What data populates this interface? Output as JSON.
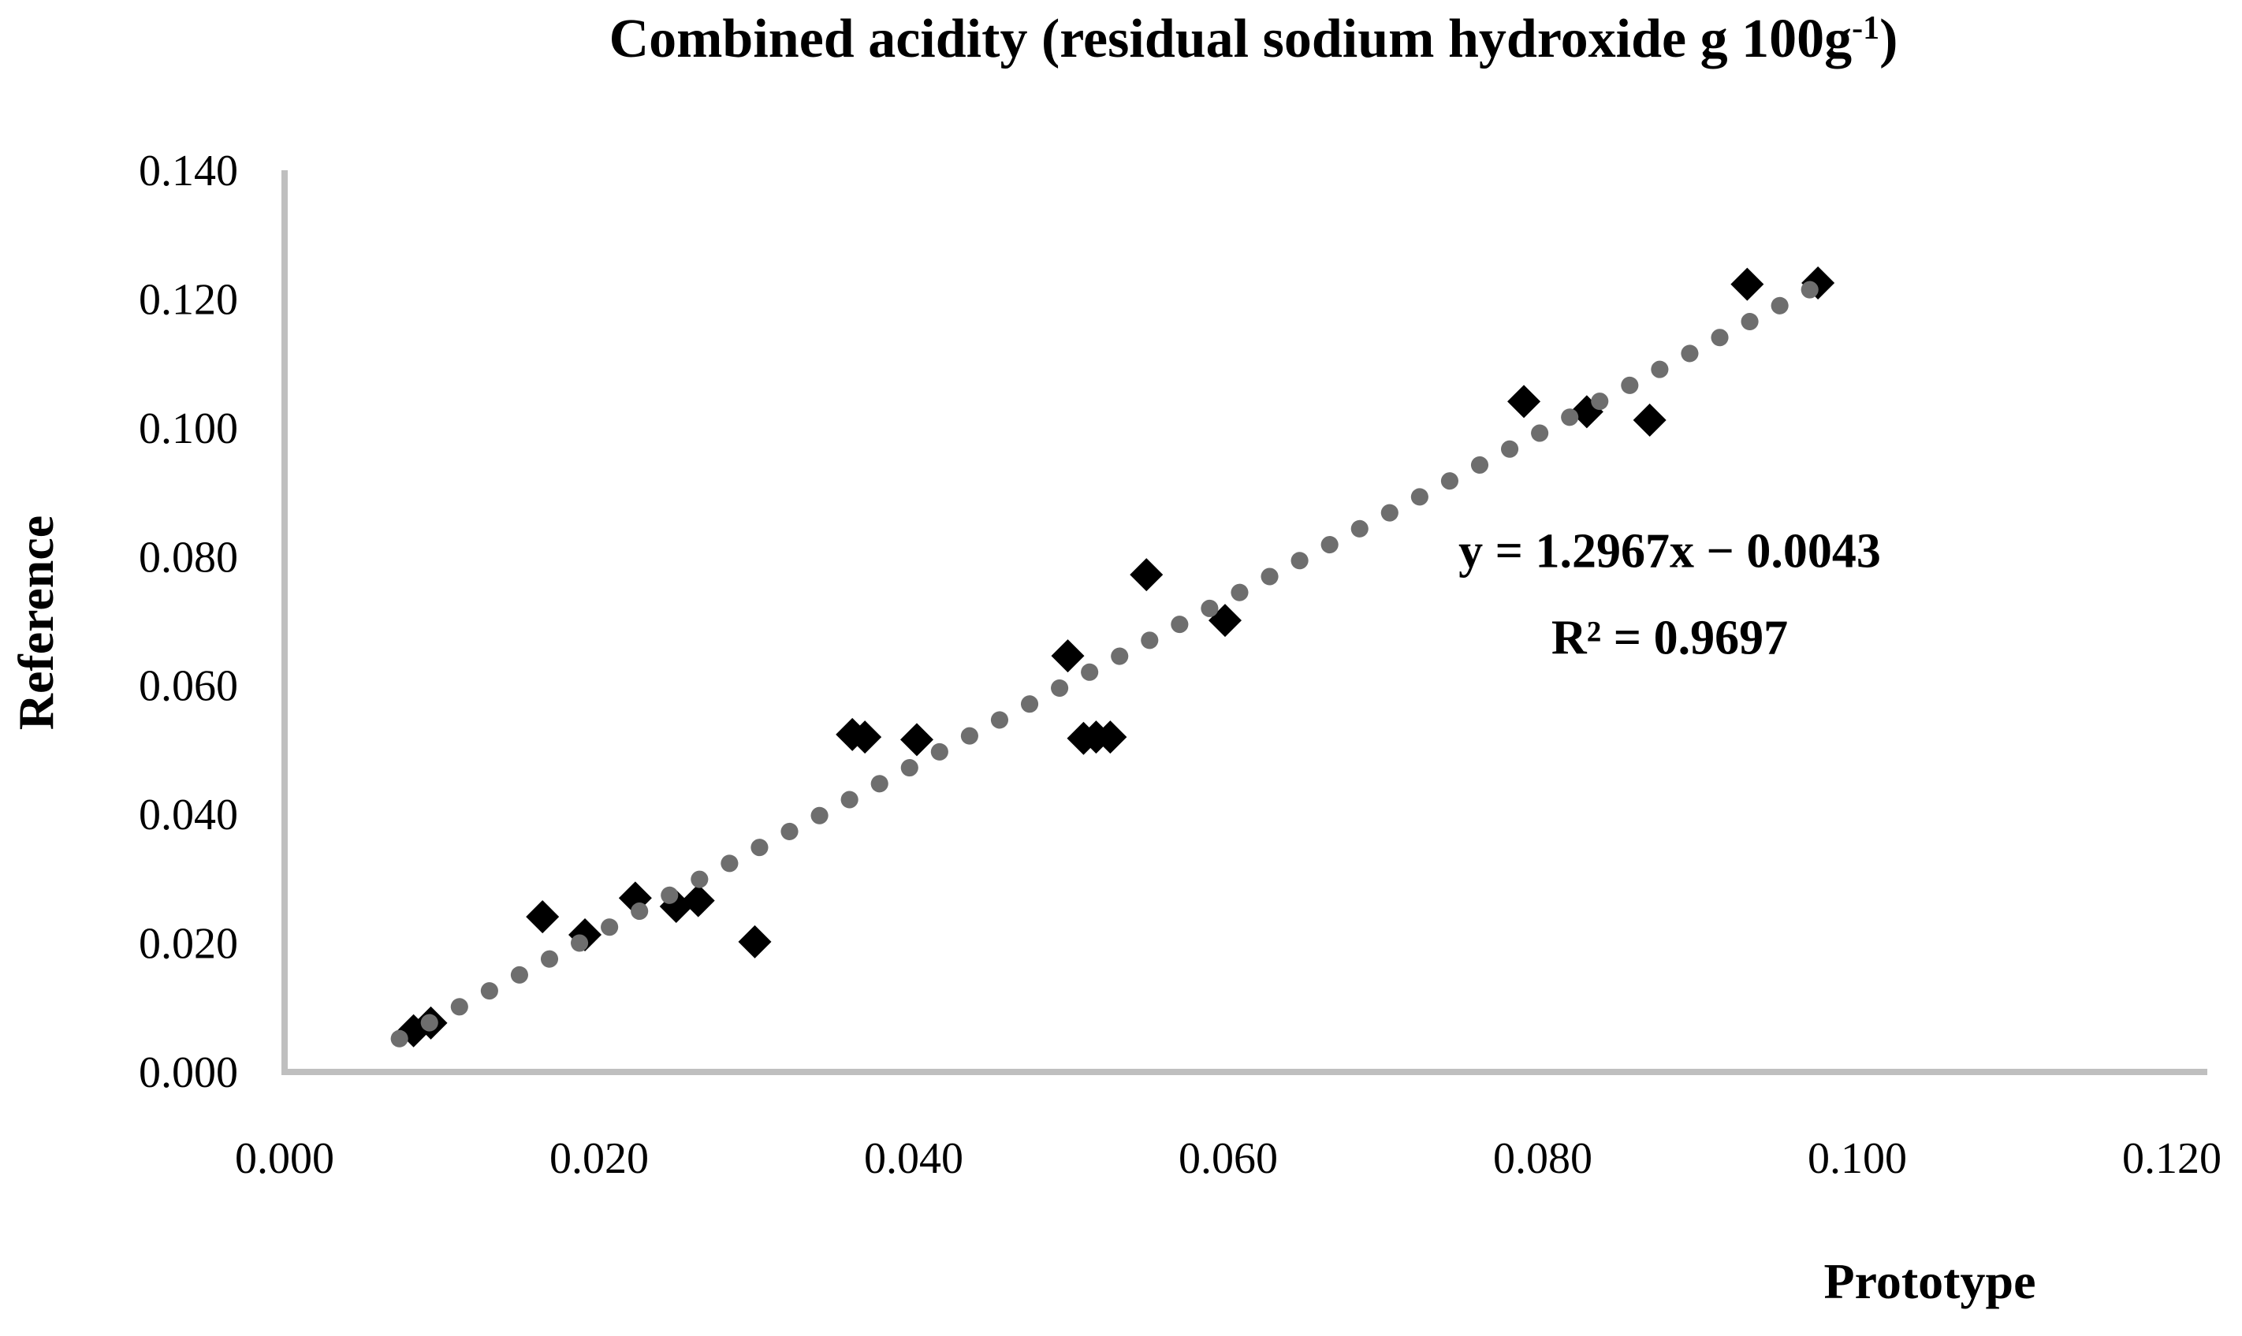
{
  "chart_data": {
    "type": "scatter",
    "title": "Combined acidity (residual sodium hydroxide g 100g⁻¹)",
    "title_parts": {
      "prefix": "Combined acidity (residual sodium hydroxide g 100g",
      "superscript": "-1",
      "suffix": ")"
    },
    "xlabel": "Prototype",
    "ylabel": "Reference",
    "x_axis": {
      "min": 0.0,
      "max": 0.12,
      "tick_values": [
        0.0,
        0.02,
        0.04,
        0.06,
        0.08,
        0.1,
        0.12
      ],
      "tick_labels": [
        "0.000",
        "0.020",
        "0.040",
        "0.060",
        "0.080",
        "0.100",
        "0.120"
      ]
    },
    "y_axis": {
      "min": 0.0,
      "max": 0.14,
      "tick_values": [
        0.0,
        0.02,
        0.04,
        0.06,
        0.08,
        0.1,
        0.12,
        0.14
      ],
      "tick_labels": [
        "0.000",
        "0.020",
        "0.040",
        "0.060",
        "0.080",
        "0.100",
        "0.120",
        "0.140"
      ]
    },
    "grid": "off",
    "legend": "none",
    "points": [
      [
        0.0082,
        0.0064
      ],
      [
        0.0093,
        0.0076
      ],
      [
        0.0164,
        0.0241
      ],
      [
        0.0191,
        0.0213
      ],
      [
        0.0223,
        0.027
      ],
      [
        0.0249,
        0.0257
      ],
      [
        0.0263,
        0.0266
      ],
      [
        0.0299,
        0.0202
      ],
      [
        0.0361,
        0.0524
      ],
      [
        0.0369,
        0.052
      ],
      [
        0.0402,
        0.0516
      ],
      [
        0.0498,
        0.0646
      ],
      [
        0.0508,
        0.0518
      ],
      [
        0.0516,
        0.052
      ],
      [
        0.0525,
        0.052
      ],
      [
        0.0548,
        0.0772
      ],
      [
        0.0598,
        0.0701
      ],
      [
        0.0788,
        0.1041
      ],
      [
        0.0828,
        0.1025
      ],
      [
        0.0868,
        0.1012
      ],
      [
        0.093,
        0.1223
      ],
      [
        0.0975,
        0.1225
      ]
    ],
    "trendline": {
      "equation": "y = 1.2967x − 0.0043",
      "r_squared_label": "R² = 0.9697",
      "slope": 1.2967,
      "intercept": -0.0043,
      "r_squared": 0.9697,
      "style": "dotted",
      "x_start": 0.0073,
      "x_end": 0.0978
    },
    "colors": {
      "points": "#000000",
      "trendline": "#6e6e6e",
      "axis": "#bfbfbf",
      "text": "#000000"
    }
  }
}
